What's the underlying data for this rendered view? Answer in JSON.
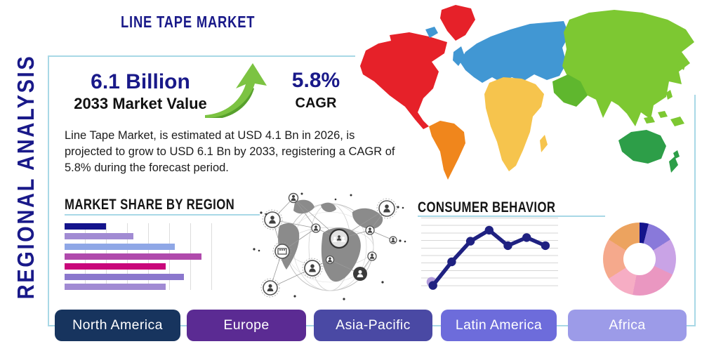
{
  "page": {
    "title": "LINE TAPE MARKET",
    "vertical_label": "REGIONAL ANALYSIS"
  },
  "accent": {
    "navy": "#191989",
    "border": "#a8d8e6",
    "heading_black": "#151515",
    "arrow_green": "#7cc342",
    "arrow_green_dark": "#57a02c"
  },
  "stats": {
    "market_value": "6.1 Billion",
    "market_value_label": "2033 Market Value",
    "cagr_value": "5.8%",
    "cagr_label": "CAGR",
    "description_lines": [
      "Line Tape Market, is estimated at USD 4.1 Bn in 2026, is",
      "projected to grow to USD 6.1 Bn by 2033, registering a CAGR of",
      "5.8% during the forecast period."
    ]
  },
  "sections": {
    "market_share_title": "MARKET SHARE BY REGION",
    "consumer_behavior_title": "CONSUMER BEHAVIOR"
  },
  "regions": [
    {
      "label": "North America",
      "color": "#17345e"
    },
    {
      "label": "Europe",
      "color": "#5b2b93"
    },
    {
      "label": "Asia-Pacific",
      "color": "#4a49a4"
    },
    {
      "label": "Latin America",
      "color": "#6d6cdb"
    },
    {
      "label": "Africa",
      "color": "#9c9be8"
    }
  ],
  "map": {
    "colors": {
      "north_america": "#e62129",
      "greenland": "#e62129",
      "south_america": "#f0861c",
      "europe": "#4197d3",
      "uk": "#4197d3",
      "iceland": "#4197d3",
      "africa": "#f6c44d",
      "asia": "#7dc832",
      "middle_east": "#5fb72e",
      "oceania": "#2d9e48"
    }
  },
  "chart_data": [
    {
      "type": "bar",
      "title": "MARKET SHARE BY REGION",
      "orientation": "horizontal",
      "values": [
        28,
        46,
        74,
        92,
        68,
        80,
        68
      ],
      "xlim": [
        0,
        100
      ],
      "grid": "vertical",
      "colors": [
        "#14148c",
        "#a18bd3",
        "#8fa7e6",
        "#b04aac",
        "#c9087a",
        "#8b77cd",
        "#a18bd3"
      ],
      "note": "bars unlabeled in source image"
    },
    {
      "type": "line",
      "title": "CONSUMER BEHAVIOR",
      "x": [
        1,
        2,
        3,
        4,
        5,
        6,
        7
      ],
      "values": [
        8,
        40,
        68,
        83,
        62,
        73,
        62
      ],
      "ylim": [
        0,
        100
      ],
      "grid": "horizontal",
      "line_color": "#1f2181",
      "first_point_halo_color": "#b39ddb",
      "note": "axes unlabeled in source image"
    },
    {
      "type": "pie",
      "title": "regional share donut",
      "slices": [
        {
          "value": 4,
          "color": "#14148c"
        },
        {
          "value": 12,
          "color": "#8979da"
        },
        {
          "value": 16,
          "color": "#c9a3e6"
        },
        {
          "value": 21,
          "color": "#ea97c1"
        },
        {
          "value": 13,
          "color": "#f6adc4"
        },
        {
          "value": 18,
          "color": "#f5a98c"
        },
        {
          "value": 16,
          "color": "#eca35f"
        }
      ],
      "start_angle_deg": 0,
      "direction": "clockwise",
      "note": "slices unlabeled in source image"
    }
  ]
}
